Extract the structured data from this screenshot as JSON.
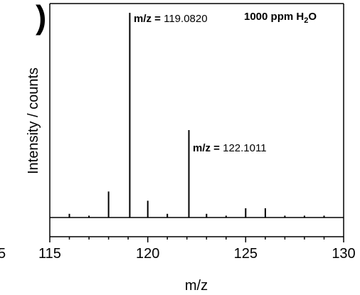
{
  "panel_label_fragment": ")",
  "left_edge_fragment": "5",
  "chart_data": {
    "type": "bar",
    "subtype": "mass-spectrum-stick",
    "xlabel": "m/z",
    "ylabel": "Intensity / counts",
    "xlim": [
      115,
      130
    ],
    "x_ticks": [
      "115",
      "120",
      "125",
      "130"
    ],
    "ylim": [
      0,
      1
    ],
    "y_ticks_shown": false,
    "grid": false,
    "legend": "none",
    "x": [
      116,
      117,
      118,
      119.082,
      120,
      121,
      122.1011,
      123,
      124,
      125,
      126,
      127,
      128,
      129
    ],
    "values": [
      0.018,
      0.009,
      0.127,
      1.0,
      0.082,
      0.018,
      0.427,
      0.018,
      0.009,
      0.045,
      0.045,
      0.009,
      0.009,
      0.009
    ],
    "annotations": [
      {
        "label": "m/z = ",
        "value": "119.0820"
      },
      {
        "label": "m/z = ",
        "value": "122.1011"
      }
    ],
    "condition": {
      "text": "1000 ppm H",
      "sub": "2",
      "tail": "O"
    },
    "line_color": "#000000"
  }
}
